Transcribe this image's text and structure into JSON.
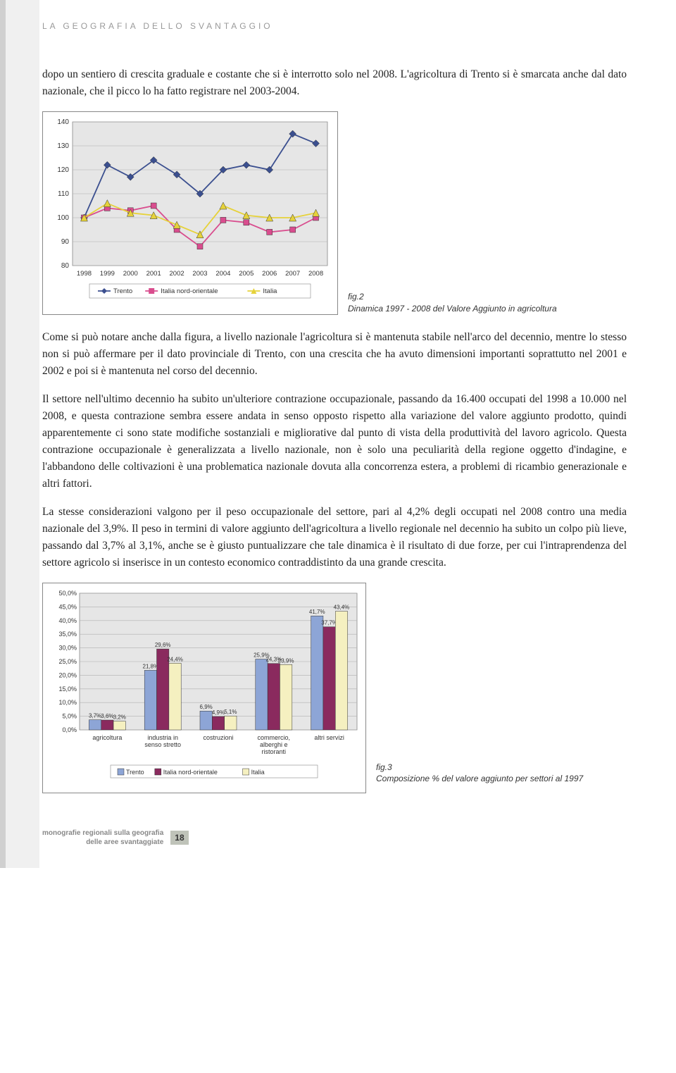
{
  "section_header": "LA GEOGRAFIA DELLO SVANTAGGIO",
  "paragraphs": {
    "p1": "dopo un sentiero di crescita graduale e costante che si è interrotto solo nel 2008. L'agricoltura di Trento si è smarcata anche dal dato nazionale, che il picco lo ha fatto registrare nel 2003-2004.",
    "p2": "Come si può notare anche dalla figura, a livello nazionale l'agricoltura si è mantenuta stabile nell'arco del decennio, mentre lo stesso non si può affermare per il dato provinciale di Trento, con una crescita che ha avuto dimensioni importanti soprattutto nel 2001 e 2002 e poi si è mantenuta nel corso del decennio.",
    "p3": "Il settore nell'ultimo decennio ha subito un'ulteriore contrazione occupazionale, passando da 16.400 occupati del 1998 a 10.000 nel 2008, e questa contrazione sembra essere andata in senso opposto rispetto alla variazione del valore aggiunto prodotto, quindi apparentemente ci sono state modifiche sostanziali e migliorative dal punto di vista della produttività del lavoro agricolo. Questa contrazione occupazionale è generalizzata a livello nazionale, non è solo una peculiarità della regione oggetto d'indagine, e l'abbandono delle coltivazioni è una problematica nazionale dovuta alla concorrenza estera, a problemi di ricambio generazionale e altri fattori.",
    "p4": "La stesse considerazioni valgono per il peso occupazionale del settore, pari al 4,2% degli occupati nel 2008 contro una media nazionale del 3,9%. Il peso in termini di valore aggiunto dell'agricoltura a livello regionale nel decennio ha subito un colpo più lieve, passando dal 3,7% al 3,1%, anche se è giusto puntualizzare che tale dinamica è il risultato di due forze, per cui l'intraprendenza del settore agricolo si inserisce in un contesto economico contraddistinto da una grande crescita."
  },
  "chart1": {
    "type": "line",
    "years": [
      "1998",
      "1999",
      "2000",
      "2001",
      "2002",
      "2003",
      "2004",
      "2005",
      "2006",
      "2007",
      "2008"
    ],
    "ylim": [
      80,
      140
    ],
    "yticks": [
      80,
      90,
      100,
      110,
      120,
      130,
      140
    ],
    "plot_bg": "#e6e6e6",
    "grid_color": "#b0b0b0",
    "series": {
      "trento": {
        "label": "Trento",
        "color": "#3b4f8f",
        "marker": "diamond",
        "values": [
          100,
          122,
          117,
          124,
          118,
          110,
          120,
          122,
          120,
          135,
          131
        ]
      },
      "italia_no": {
        "label": "Italia nord-orientale",
        "color": "#d94d8e",
        "marker": "square",
        "values": [
          100,
          104,
          103,
          105,
          95,
          88,
          99,
          98,
          94,
          95,
          100
        ]
      },
      "italia": {
        "label": "Italia",
        "color": "#e6d23a",
        "marker": "triangle",
        "values": [
          100,
          106,
          102,
          101,
          97,
          93,
          105,
          101,
          100,
          100,
          102
        ]
      }
    },
    "caption_title": "fig.2",
    "caption_text": "Dinamica 1997 - 2008 del Valore Aggiunto in agricoltura"
  },
  "chart2": {
    "type": "grouped-bar",
    "categories": [
      "agricoltura",
      "industria in senso stretto",
      "costruzioni",
      "commercio, alberghi e ristoranti",
      "altri servizi"
    ],
    "ylim": [
      0,
      50
    ],
    "yticks": [
      "0,0%",
      "5,0%",
      "10,0%",
      "15,0%",
      "20,0%",
      "25,0%",
      "30,0%",
      "35,0%",
      "40,0%",
      "45,0%",
      "50,0%"
    ],
    "plot_bg": "#e6e6e6",
    "grid_color": "#b0b0b0",
    "series": {
      "trento": {
        "label": "Trento",
        "color": "#8da5d6",
        "values": [
          3.7,
          21.8,
          6.9,
          25.9,
          41.7
        ],
        "value_labels": [
          "3,7%",
          "21,8%",
          "6,9%",
          "25,9%",
          "41,7%"
        ]
      },
      "italia_no": {
        "label": "Italia nord-orientale",
        "color": "#8a2a5e",
        "values": [
          3.6,
          29.6,
          4.9,
          24.3,
          37.7
        ],
        "value_labels": [
          "3,6%",
          "29,6%",
          "4,9%",
          "24,3%",
          "37,7%"
        ]
      },
      "italia": {
        "label": "Italia",
        "color": "#f5f0c0",
        "values": [
          3.2,
          24.4,
          5.1,
          23.9,
          43.4
        ],
        "value_labels": [
          "3,2%",
          "24,4%",
          "5,1%",
          "23,9%",
          "43,4%"
        ]
      }
    },
    "caption_title": "fig.3",
    "caption_text": "Composizione % del valore aggiunto per settori al 1997"
  },
  "footer": {
    "line1": "monografie regionali sulla geografia",
    "line2": "delle aree svantaggiate",
    "page": "18"
  }
}
